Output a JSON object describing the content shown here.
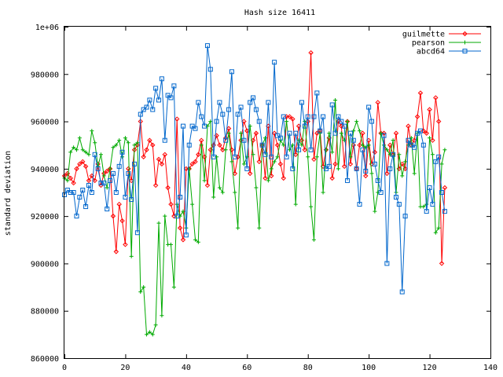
{
  "chart_data": {
    "type": "line",
    "title": "Hash size 16411",
    "xlabel": "",
    "ylabel": "standard deviation",
    "xlim": [
      0,
      140
    ],
    "ylim": [
      860000,
      1000000
    ],
    "xticks": [
      0,
      20,
      40,
      60,
      80,
      100,
      120,
      140
    ],
    "xtick_labels": [
      "0",
      "20",
      "40",
      "60",
      "80",
      "100",
      "120",
      "140"
    ],
    "yticks": [
      860000,
      880000,
      900000,
      920000,
      940000,
      960000,
      980000,
      1000000
    ],
    "ytick_labels": [
      "860000",
      "880000",
      "900000",
      "920000",
      "940000",
      "960000",
      "980000",
      "1e+06"
    ],
    "grid": false,
    "legend_position": "top-right",
    "series": [
      {
        "name": "guilmette",
        "color": "#ff0000",
        "marker": "diamond",
        "x": [
          0,
          1,
          2,
          3,
          4,
          5,
          6,
          7,
          8,
          9,
          10,
          11,
          12,
          13,
          14,
          15,
          16,
          17,
          18,
          19,
          20,
          21,
          22,
          23,
          24,
          25,
          26,
          27,
          28,
          29,
          30,
          31,
          32,
          33,
          34,
          35,
          36,
          37,
          38,
          39,
          40,
          41,
          42,
          43,
          44,
          45,
          46,
          47,
          48,
          49,
          50,
          51,
          52,
          53,
          54,
          55,
          56,
          57,
          58,
          59,
          60,
          61,
          62,
          63,
          64,
          65,
          66,
          67,
          68,
          69,
          70,
          71,
          72,
          73,
          74,
          75,
          76,
          77,
          78,
          79,
          80,
          81,
          82,
          83,
          84,
          85,
          86,
          87,
          88,
          89,
          90,
          91,
          92,
          93,
          94,
          95,
          96,
          97,
          98,
          99,
          100,
          101,
          102,
          103,
          104,
          105,
          106,
          107,
          108,
          109,
          110,
          111,
          112,
          113,
          114,
          115,
          116,
          117,
          118,
          119,
          120,
          121,
          122,
          123,
          124,
          125
        ],
        "values": [
          937000,
          938000,
          936000,
          934000,
          940000,
          942000,
          943000,
          941000,
          935000,
          937000,
          935000,
          942000,
          933000,
          938000,
          939000,
          940000,
          920000,
          905000,
          925000,
          918000,
          908000,
          940000,
          935000,
          948000,
          950000,
          960000,
          945000,
          948000,
          952000,
          950000,
          933000,
          944000,
          942000,
          946000,
          932000,
          925000,
          920000,
          961000,
          915000,
          910000,
          940000,
          940000,
          942000,
          943000,
          946000,
          952000,
          945000,
          933000,
          948000,
          950000,
          954000,
          950000,
          948000,
          953000,
          957000,
          948000,
          938000,
          945000,
          952000,
          960000,
          956000,
          938000,
          952000,
          955000,
          943000,
          950000,
          936000,
          958000,
          937000,
          955000,
          950000,
          942000,
          936000,
          962000,
          962000,
          961000,
          946000,
          958000,
          952000,
          948000,
          960000,
          989000,
          944000,
          955000,
          956000,
          941000,
          948000,
          953000,
          936000,
          942000,
          960000,
          958000,
          941000,
          960000,
          942000,
          950000,
          940000,
          950000,
          955000,
          937000,
          952000,
          942000,
          947000,
          968000,
          955000,
          955000,
          938000,
          950000,
          946000,
          955000,
          940000,
          942000,
          940000,
          958000,
          950000,
          952000,
          962000,
          972000,
          956000,
          955000,
          965000,
          952000,
          970000,
          960000,
          900000,
          932000
        ]
      },
      {
        "name": "pearson",
        "color": "#00aa00",
        "marker": "plus",
        "x": [
          0,
          1,
          2,
          3,
          4,
          5,
          6,
          7,
          8,
          9,
          10,
          11,
          12,
          13,
          14,
          15,
          16,
          17,
          18,
          19,
          20,
          21,
          22,
          23,
          24,
          25,
          26,
          27,
          28,
          29,
          30,
          31,
          32,
          33,
          34,
          35,
          36,
          37,
          38,
          39,
          40,
          41,
          42,
          43,
          44,
          45,
          46,
          47,
          48,
          49,
          50,
          51,
          52,
          53,
          54,
          55,
          56,
          57,
          58,
          59,
          60,
          61,
          62,
          63,
          64,
          65,
          66,
          67,
          68,
          69,
          70,
          71,
          72,
          73,
          74,
          75,
          76,
          77,
          78,
          79,
          80,
          81,
          82,
          83,
          84,
          85,
          86,
          87,
          88,
          89,
          90,
          91,
          92,
          93,
          94,
          95,
          96,
          97,
          98,
          99,
          100,
          101,
          102,
          103,
          104,
          105,
          106,
          107,
          108,
          109,
          110,
          111,
          112,
          113,
          114,
          115,
          116,
          117,
          118,
          119,
          120,
          121,
          122,
          123,
          124,
          125
        ],
        "values": [
          936000,
          935000,
          947000,
          949000,
          948000,
          953000,
          948000,
          947000,
          946000,
          956000,
          951000,
          941000,
          946000,
          937000,
          932000,
          940000,
          949000,
          950000,
          952000,
          945000,
          953000,
          951000,
          903000,
          950000,
          951000,
          888000,
          890000,
          870000,
          871000,
          870000,
          874000,
          917000,
          878000,
          920000,
          908000,
          908000,
          890000,
          925000,
          920000,
          922000,
          915000,
          940000,
          925000,
          910000,
          909000,
          950000,
          935000,
          958000,
          960000,
          928000,
          945000,
          932000,
          930000,
          948000,
          955000,
          943000,
          930000,
          915000,
          955000,
          942000,
          945000,
          958000,
          946000,
          932000,
          915000,
          950000,
          953000,
          935000,
          940000,
          943000,
          945000,
          952000,
          950000,
          960000,
          948000,
          950000,
          925000,
          952000,
          950000,
          960000,
          945000,
          924000,
          910000,
          945000,
          955000,
          930000,
          948000,
          955000,
          947000,
          969000,
          940000,
          955000,
          952000,
          960000,
          945000,
          956000,
          960000,
          956000,
          950000,
          949000,
          950000,
          938000,
          922000,
          930000,
          955000,
          950000,
          948000,
          946000,
          952000,
          930000,
          946000,
          937000,
          943000,
          950000,
          953000,
          938000,
          955000,
          924000,
          924000,
          925000,
          953000,
          946000,
          913000,
          915000,
          942000,
          948000
        ]
      },
      {
        "name": "abcd64",
        "color": "#0066cc",
        "marker": "square",
        "x": [
          0,
          1,
          2,
          3,
          4,
          5,
          6,
          7,
          8,
          9,
          10,
          11,
          12,
          13,
          14,
          15,
          16,
          17,
          18,
          19,
          20,
          21,
          22,
          23,
          24,
          25,
          26,
          27,
          28,
          29,
          30,
          31,
          32,
          33,
          34,
          35,
          36,
          37,
          38,
          39,
          40,
          41,
          42,
          43,
          44,
          45,
          46,
          47,
          48,
          49,
          50,
          51,
          52,
          53,
          54,
          55,
          56,
          57,
          58,
          59,
          60,
          61,
          62,
          63,
          64,
          65,
          66,
          67,
          68,
          69,
          70,
          71,
          72,
          73,
          74,
          75,
          76,
          77,
          78,
          79,
          80,
          81,
          82,
          83,
          84,
          85,
          86,
          87,
          88,
          89,
          90,
          91,
          92,
          93,
          94,
          95,
          96,
          97,
          98,
          99,
          100,
          101,
          102,
          103,
          104,
          105,
          106,
          107,
          108,
          109,
          110,
          111,
          112,
          113,
          114,
          115,
          116,
          117,
          118,
          119,
          120,
          121,
          122,
          123,
          124,
          125
        ],
        "values": [
          929000,
          931000,
          930000,
          930000,
          920000,
          928000,
          931000,
          924000,
          933000,
          930000,
          946000,
          940000,
          934000,
          934000,
          923000,
          935000,
          938000,
          930000,
          941000,
          947000,
          928000,
          938000,
          927000,
          942000,
          913000,
          963000,
          965000,
          966000,
          969000,
          965000,
          974000,
          969000,
          978000,
          952000,
          971000,
          970000,
          975000,
          920000,
          928000,
          958000,
          912000,
          950000,
          958000,
          957000,
          968000,
          962000,
          958000,
          992000,
          982000,
          945000,
          960000,
          968000,
          963000,
          952000,
          965000,
          981000,
          945000,
          963000,
          966000,
          952000,
          940000,
          968000,
          970000,
          965000,
          960000,
          950000,
          946000,
          968000,
          945000,
          985000,
          954000,
          953000,
          962000,
          945000,
          955000,
          940000,
          955000,
          948000,
          968000,
          958000,
          962000,
          948000,
          962000,
          972000,
          956000,
          962000,
          940000,
          941000,
          967000,
          955000,
          962000,
          960000,
          958000,
          935000,
          955000,
          952000,
          940000,
          925000,
          948000,
          939000,
          966000,
          960000,
          942000,
          935000,
          930000,
          954000,
          900000,
          940000,
          946000,
          928000,
          925000,
          888000,
          920000,
          952000,
          950000,
          949000,
          955000,
          956000,
          950000,
          922000,
          932000,
          925000,
          943000,
          945000,
          930000,
          922000
        ]
      }
    ]
  }
}
